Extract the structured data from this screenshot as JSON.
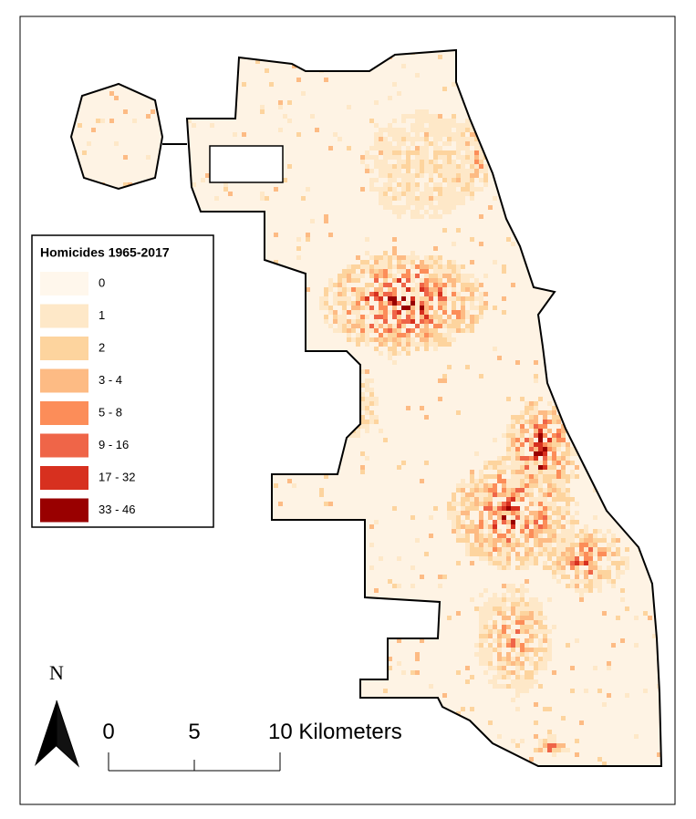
{
  "legend": {
    "title": "Homicides 1965-2017",
    "items": [
      {
        "label": "0",
        "color": "#fff7ec"
      },
      {
        "label": "1",
        "color": "#fee8c8"
      },
      {
        "label": "2",
        "color": "#fdd49e"
      },
      {
        "label": "3 - 4",
        "color": "#fdbb84"
      },
      {
        "label": "5 - 8",
        "color": "#fc8d59"
      },
      {
        "label": "9 - 16",
        "color": "#ef6548"
      },
      {
        "label": "17 - 32",
        "color": "#d7301f"
      },
      {
        "label": "33 - 46",
        "color": "#990000"
      }
    ]
  },
  "north_arrow": {
    "label": "N"
  },
  "scale_bar": {
    "labels": [
      "0",
      "5",
      "10 Kilometers"
    ]
  }
}
